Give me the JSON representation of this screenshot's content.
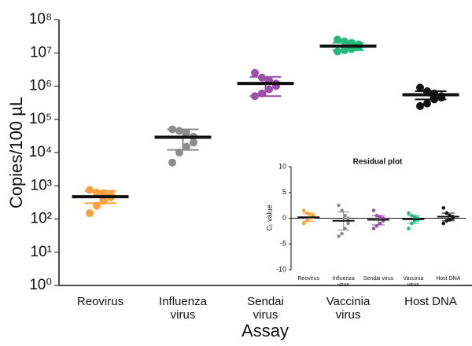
{
  "chart_data": [
    {
      "type": "scatter",
      "x_label": "Assay",
      "y_label": "Copies/100 µL",
      "log_scale": true,
      "categories": [
        "Reovirus",
        "Influenza virus",
        "Sendai virus",
        "Vaccinia virus",
        "Host DNA"
      ],
      "colors": [
        "#f7a23f",
        "#8c8c8c",
        "#9b4fa8",
        "#26b87a",
        "#111111"
      ],
      "points": [
        [
          750,
          620,
          600,
          550,
          450,
          350,
          250,
          150
        ],
        [
          50000,
          45000,
          40000,
          30000,
          20000,
          15000,
          10000,
          5000
        ],
        [
          2500000,
          1800000,
          1500000,
          1200000,
          1000000,
          800000,
          600000,
          500000
        ],
        [
          25000000,
          22000000,
          20000000,
          18000000,
          15000000,
          13000000,
          12000000,
          11000000
        ],
        [
          900000,
          700000,
          600000,
          500000,
          450000,
          400000,
          300000,
          250000
        ]
      ],
      "means": [
        470,
        29000,
        1200000,
        16000000,
        550000
      ],
      "lower": [
        300,
        12000,
        500000,
        12000000,
        400000
      ],
      "upper": [
        700,
        50000,
        1900000,
        20000000,
        700000
      ],
      "ylim": [
        1,
        100000000
      ],
      "yticks": [
        {
          "value": 1,
          "label": "10⁰"
        },
        {
          "value": 10,
          "label": "10¹"
        },
        {
          "value": 100,
          "label": "10²"
        },
        {
          "value": 1000,
          "label": "10³"
        },
        {
          "value": 10000,
          "label": "10⁴"
        },
        {
          "value": 100000,
          "label": "10⁵"
        },
        {
          "value": 1000000,
          "label": "10⁶"
        },
        {
          "value": 10000000,
          "label": "10⁷"
        },
        {
          "value": 100000000,
          "label": "10⁸"
        }
      ]
    },
    {
      "type": "scatter",
      "title": "Residual plot",
      "y_label": "Cₜ value",
      "log_scale": false,
      "categories": [
        "Reovirus",
        "Influenza virus",
        "Sendai virus",
        "Vaccinia virus",
        "Host DNA"
      ],
      "colors": [
        "#f7a23f",
        "#8c8c8c",
        "#9b4fa8",
        "#26b87a",
        "#111111"
      ],
      "points": [
        [
          1.5,
          1,
          0.8,
          0.5,
          0.3,
          0,
          -0.5,
          -1
        ],
        [
          2.5,
          1.5,
          0.5,
          0,
          -1,
          -2,
          -3,
          -3.5
        ],
        [
          1.5,
          0.5,
          0.3,
          0,
          -0.5,
          -1,
          -1.5,
          -2
        ],
        [
          1,
          0.5,
          0.3,
          0,
          -0.3,
          -0.5,
          -1,
          -2
        ],
        [
          2,
          1,
          0.5,
          0.3,
          0,
          -0.3,
          -0.5,
          -1
        ]
      ],
      "means": [
        0.2,
        -0.5,
        -0.3,
        -0.2,
        0.3
      ],
      "lower": [
        -0.6,
        -2.3,
        -1.3,
        -1,
        -0.5
      ],
      "upper": [
        1,
        1.2,
        0.5,
        0.5,
        1
      ],
      "ylim": [
        -10,
        10
      ],
      "yticks": [
        10,
        5,
        0,
        -5,
        -10
      ]
    }
  ]
}
